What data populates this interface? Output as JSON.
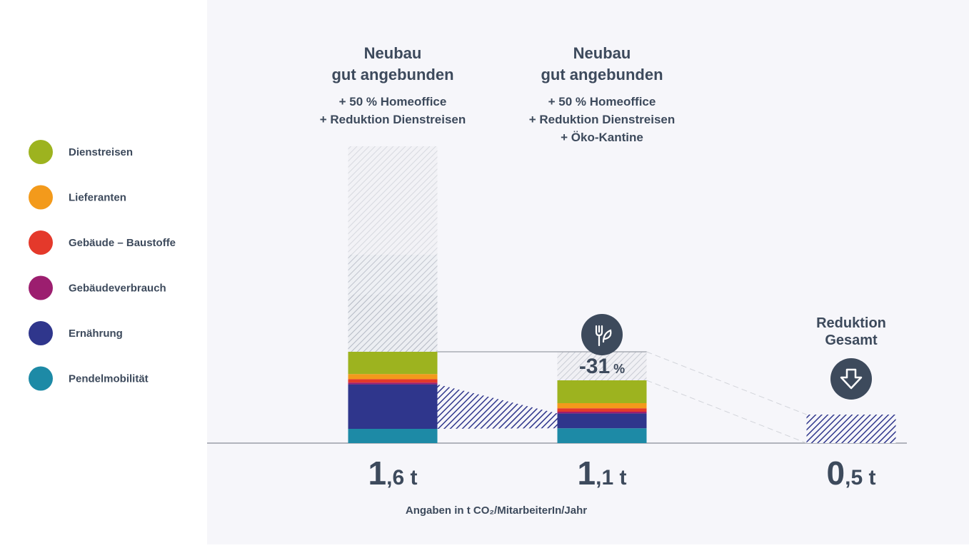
{
  "chart_data": {
    "type": "stacked-bar",
    "unit_label": "Angaben in t CO₂/MitarbeiterIn/Jahr",
    "ylim": [
      0,
      5.2
    ],
    "series": [
      {
        "name": "Dienstreisen",
        "color": "#9db31f",
        "values": [
          0.39,
          0.4,
          null
        ]
      },
      {
        "name": "Lieferanten",
        "color": "#f39a1b",
        "values": [
          0.09,
          0.09,
          null
        ]
      },
      {
        "name": "Gebäude – Baustoffe",
        "color": "#e4392b",
        "values": [
          0.06,
          0.06,
          null
        ]
      },
      {
        "name": "Gebäudeverbrauch",
        "color": "#9c1e6f",
        "values": [
          0.03,
          0.03,
          null
        ]
      },
      {
        "name": "Ernährung",
        "color": "#2f368c",
        "values": [
          0.78,
          0.26,
          null
        ]
      },
      {
        "name": "Pendelmobilität",
        "color": "#1d8aa6",
        "values": [
          0.25,
          0.26,
          null
        ]
      }
    ],
    "bars": [
      {
        "title": [
          "Neubau",
          "gut angebunden"
        ],
        "notes": [
          "+ 50 % Homeoffice",
          "+ Reduktion Dienstreisen"
        ],
        "total": {
          "value": 1.6,
          "label": "1,6 t"
        },
        "ghost": [
          1.0,
          0.7,
          1.9
        ]
      },
      {
        "title": [
          "Neubau",
          "gut angebunden"
        ],
        "notes": [
          "+ 50 % Homeoffice",
          "+ Reduktion Dienstreisen",
          "+ Öko-Kantine"
        ],
        "total": {
          "value": 1.1,
          "label": "1,1 t"
        },
        "reduction": 0.5,
        "reduction_percent": {
          "value": -31,
          "label": "-31 %"
        }
      },
      {
        "title": [
          "Reduktion",
          "Gesamt"
        ],
        "notes": [],
        "total": {
          "value": 0.5,
          "label": "0,5 t"
        },
        "reduction": 0.5
      }
    ]
  }
}
